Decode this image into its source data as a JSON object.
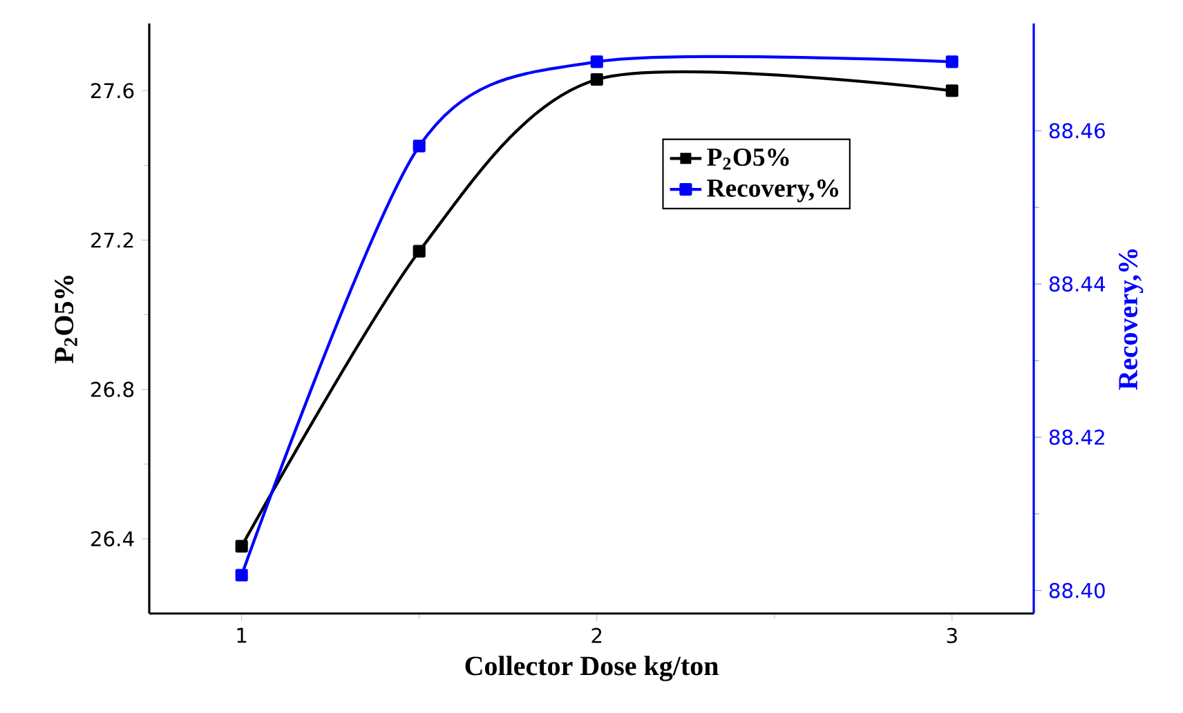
{
  "chart_data": {
    "type": "line",
    "xlabel": "Collector Dose kg/ton",
    "ylabel": "P$_{2}$O5%",
    "y2label": "Recovery,%",
    "x": [
      1,
      1.5,
      2,
      3
    ],
    "series": [
      {
        "name": "P$_{2}$O5%",
        "color": "#000000",
        "values": [
          26.38,
          27.17,
          27.63,
          27.6
        ]
      },
      {
        "name": "Recovery,%",
        "color": "#0000ff",
        "axis": "y2",
        "values": [
          88.402,
          88.458,
          88.469,
          88.469
        ]
      }
    ],
    "xlim": [
      0.74,
      3.23
    ],
    "xticks": [
      1,
      2,
      3
    ],
    "ylim": [
      26.2,
      27.78
    ],
    "yticks": [
      26.4,
      26.8,
      27.2,
      27.6
    ],
    "y2lim": [
      88.397,
      88.474
    ],
    "y2ticks": [
      {
        "value": 88.4,
        "label": "88.40"
      },
      88.42,
      88.44,
      88.46
    ],
    "marker": "square",
    "line_style": "solid",
    "legend": "top right",
    "grid": false
  }
}
